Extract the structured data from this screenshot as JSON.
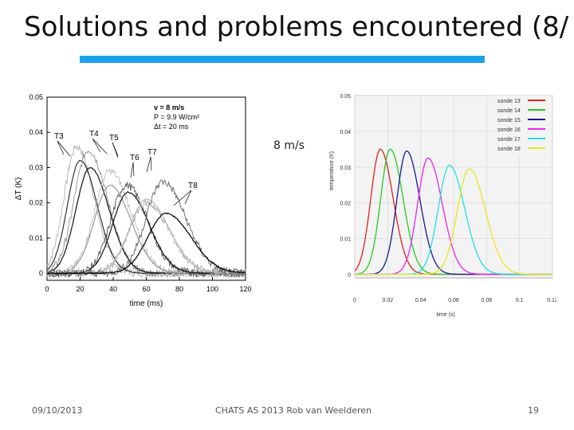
{
  "slide": {
    "title": "Solutions and problems encountered (8/",
    "annotation": "8 m/s",
    "footer_date": "09/10/2013",
    "footer_center": "CHATS AS 2013    Rob van Weelderen",
    "page_number": "19",
    "accent_color": "#1aa3e8"
  },
  "chart_data": [
    {
      "type": "line",
      "ylabel": "ΔT (K)",
      "xlabel": "time (ms)",
      "xlim": [
        0,
        120
      ],
      "ylim": [
        -0.002,
        0.05
      ],
      "xticks": [
        "0",
        "20",
        "40",
        "60",
        "80",
        "100",
        "120"
      ],
      "yticks": [
        "0",
        "0.01",
        "0.02",
        "0.03",
        "0.04",
        "0.05"
      ],
      "grid": false,
      "params": [
        "v = 8 m/s",
        "P = 9.9 W/cm²",
        "Δt = 20 ms"
      ],
      "curve_labels": [
        "T3",
        "T4",
        "T5",
        "T6",
        "T7",
        "T8"
      ],
      "series": [
        {
          "name": "T3",
          "color": "#b0b0b0",
          "peak_x": 18,
          "peak_y": 0.036,
          "width": 9,
          "noisy": true
        },
        {
          "name": "T3",
          "color": "#333333",
          "peak_x": 20,
          "peak_y": 0.032,
          "width": 9,
          "noisy": false
        },
        {
          "name": "T4",
          "color": "#909090",
          "peak_x": 25,
          "peak_y": 0.035,
          "width": 10,
          "noisy": true
        },
        {
          "name": "T4",
          "color": "#111111",
          "peak_x": 26,
          "peak_y": 0.03,
          "width": 10,
          "noisy": false
        },
        {
          "name": "T5",
          "color": "#c0c0c0",
          "peak_x": 38,
          "peak_y": 0.029,
          "width": 11,
          "noisy": true
        },
        {
          "name": "T5",
          "color": "#999999",
          "peak_x": 38,
          "peak_y": 0.025,
          "width": 11,
          "noisy": false
        },
        {
          "name": "T6",
          "color": "#555555",
          "peak_x": 48,
          "peak_y": 0.025,
          "width": 11,
          "noisy": true
        },
        {
          "name": "T6",
          "color": "#111111",
          "peak_x": 49,
          "peak_y": 0.023,
          "width": 11,
          "noisy": false
        },
        {
          "name": "T7",
          "color": "#aaaaaa",
          "peak_x": 60,
          "peak_y": 0.02,
          "width": 12,
          "noisy": true
        },
        {
          "name": "T7",
          "color": "#bbbbbb",
          "peak_x": 60,
          "peak_y": 0.021,
          "width": 12,
          "noisy": false
        },
        {
          "name": "T8",
          "color": "#666666",
          "peak_x": 70,
          "peak_y": 0.026,
          "width": 12,
          "noisy": true
        },
        {
          "name": "T8",
          "color": "#000000",
          "peak_x": 72,
          "peak_y": 0.017,
          "width": 13,
          "noisy": false
        }
      ]
    },
    {
      "type": "line",
      "ylabel": "temperature (K)",
      "xlabel": "time (s)",
      "xlim": [
        0,
        0.12
      ],
      "ylim": [
        -0.001,
        0.05
      ],
      "xticks": [
        "0",
        "0.02",
        "0.04",
        "0.06",
        "0.08",
        "0.1",
        "0.12"
      ],
      "yticks": [
        "0",
        "0.01",
        "0.02",
        "0.03",
        "0.04",
        "0.05"
      ],
      "grid": true,
      "legend_position": "top-right",
      "series": [
        {
          "name": "sonde 13",
          "color": "#e02020",
          "peak_x": 0.0155,
          "peak_y": 0.035,
          "width": 0.0068
        },
        {
          "name": "sonde 14",
          "color": "#22cc22",
          "peak_x": 0.0215,
          "peak_y": 0.035,
          "width": 0.0068
        },
        {
          "name": "sonde 15",
          "color": "#1a1a90",
          "peak_x": 0.0315,
          "peak_y": 0.0345,
          "width": 0.007
        },
        {
          "name": "sonde 16",
          "color": "#ee22ee",
          "peak_x": 0.0445,
          "peak_y": 0.0325,
          "width": 0.0075
        },
        {
          "name": "sonde 17",
          "color": "#22e0e0",
          "peak_x": 0.0575,
          "peak_y": 0.0305,
          "width": 0.008
        },
        {
          "name": "sonde 18",
          "color": "#e8e818",
          "peak_x": 0.0695,
          "peak_y": 0.0295,
          "width": 0.0085
        }
      ]
    }
  ]
}
